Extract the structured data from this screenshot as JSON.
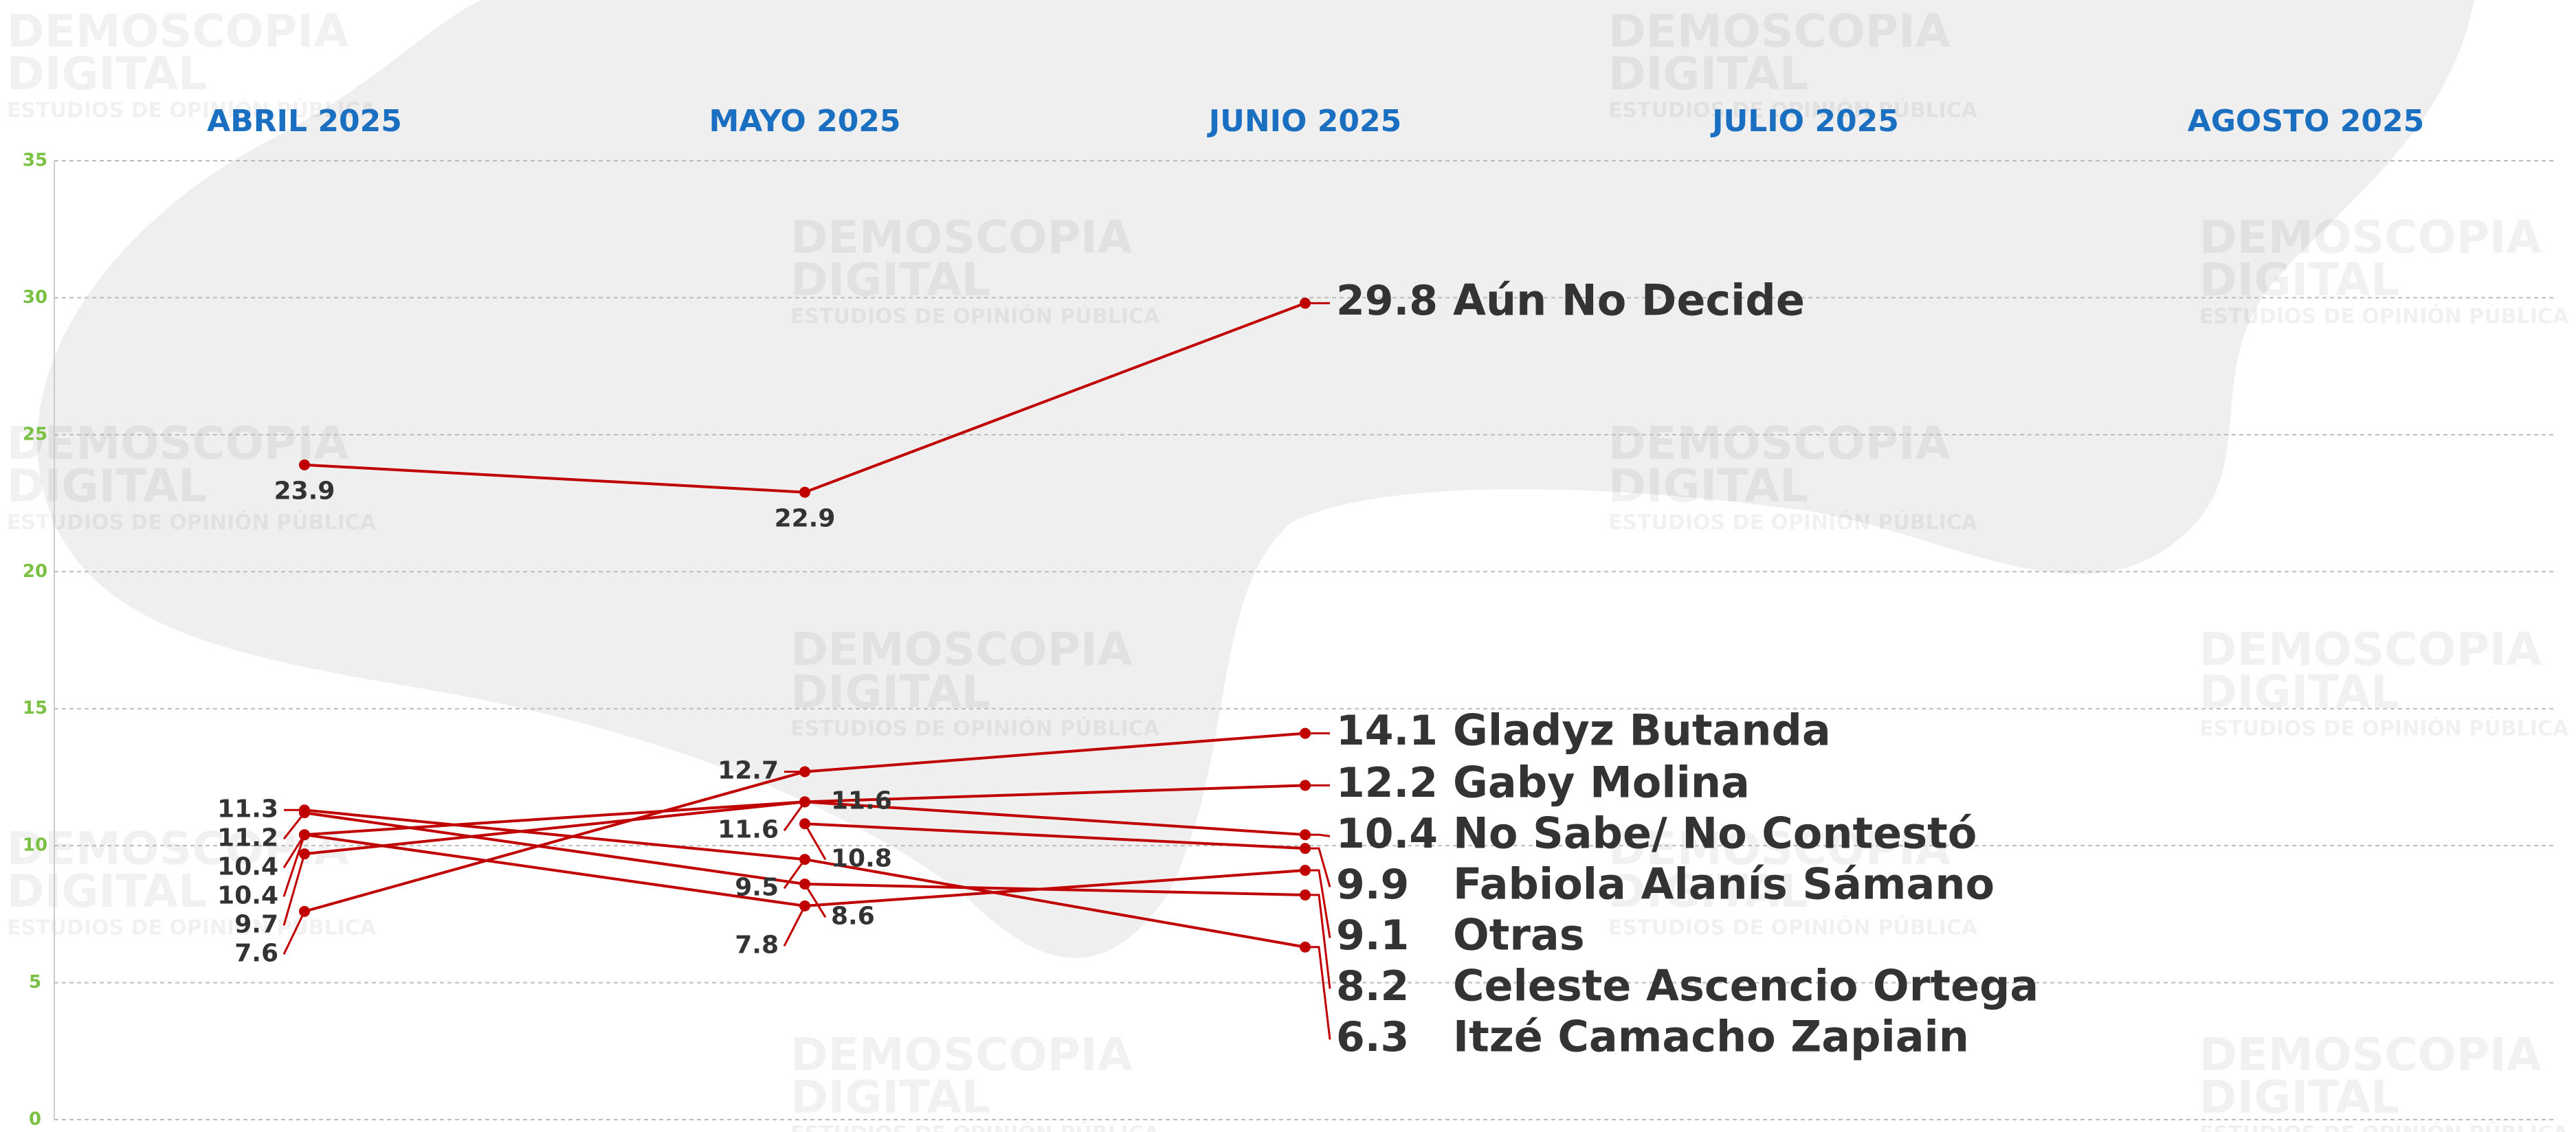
{
  "chart_data": {
    "type": "line",
    "categories": [
      "ABRIL 2025",
      "MAYO 2025",
      "JUNIO 2025",
      "JULIO 2025",
      "AGOSTO 2025"
    ],
    "ylim": [
      0,
      35
    ],
    "yticks": [
      0,
      5,
      10,
      15,
      20,
      25,
      30,
      35
    ],
    "grid": true,
    "watermark": [
      "DEMOSCOPIA",
      "DIGITAL",
      "ESTUDIOS DE OPINIÓN PÚBLICA"
    ],
    "series": [
      {
        "name": "Aún No Decide",
        "color": "#c00000",
        "values": [
          23.9,
          22.9,
          29.8,
          null,
          null
        ]
      },
      {
        "name": "Gladyz Butanda",
        "color": "#c00000",
        "values": [
          7.6,
          12.7,
          14.1,
          null,
          null
        ]
      },
      {
        "name": "Gaby Molina",
        "color": "#c00000",
        "values": [
          9.7,
          11.6,
          12.2,
          null,
          null
        ]
      },
      {
        "name": "No Sabe/ No Contestó",
        "color": "#c00000",
        "values": [
          10.4,
          11.6,
          10.4,
          null,
          null
        ]
      },
      {
        "name": "Fabiola Alanís Sámano",
        "color": "#c00000",
        "values": [
          null,
          10.8,
          9.9,
          null,
          null
        ]
      },
      {
        "name": "Otras",
        "color": "#c00000",
        "values": [
          10.4,
          7.8,
          9.1,
          null,
          null
        ]
      },
      {
        "name": "Celeste Ascencio Ortega",
        "color": "#c00000",
        "values": [
          11.2,
          8.6,
          8.2,
          null,
          null
        ]
      },
      {
        "name": "Itzé Camacho Zapiain",
        "color": "#c00000",
        "values": [
          11.3,
          9.5,
          6.3,
          null,
          null
        ]
      }
    ]
  }
}
